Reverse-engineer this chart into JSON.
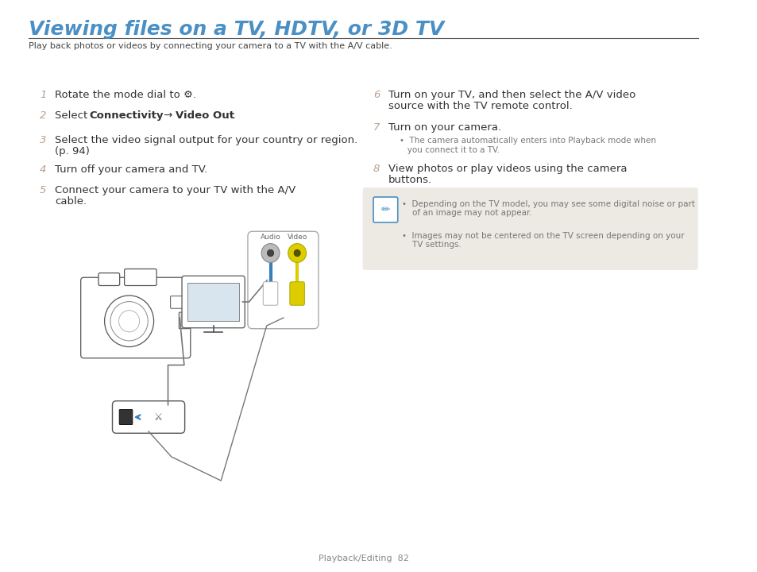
{
  "title": "Viewing files on a TV, HDTV, or 3D TV",
  "title_color": "#4A90C4",
  "subtitle": "Play back photos or videos by connecting your camera to a TV with the A/V cable.",
  "subtitle_color": "#444444",
  "background_color": "#ffffff",
  "number_color": "#B8A090",
  "step_color": "#333333",
  "steps_left": [
    {
      "num": "1",
      "lines": [
        "Rotate the mode dial to ⚙."
      ]
    },
    {
      "num": "2",
      "lines": [
        "Select Connectivity → Video Out."
      ],
      "bold_ranges": [
        [
          7,
          19
        ],
        [
          22,
          31
        ]
      ]
    },
    {
      "num": "3",
      "lines": [
        "Select the video signal output for your country or region.",
        "(p. 94)"
      ]
    },
    {
      "num": "4",
      "lines": [
        "Turn off your camera and TV."
      ]
    },
    {
      "num": "5",
      "lines": [
        "Connect your camera to your TV with the A/V",
        "cable."
      ]
    }
  ],
  "steps_right": [
    {
      "num": "6",
      "lines": [
        "Turn on your TV, and then select the A/V video",
        "source with the TV remote control."
      ]
    },
    {
      "num": "7",
      "lines": [
        "Turn on your camera."
      ],
      "sub_lines": [
        "The camera automatically enters into Playback mode when",
        "you connect it to a TV."
      ]
    },
    {
      "num": "8",
      "lines": [
        "View photos or play videos using the camera",
        "buttons."
      ]
    }
  ],
  "note_bullets": [
    [
      "Depending on the TV model, you may see some digital noise or part",
      "of an image may not appear."
    ],
    [
      "Images may not be centered on the TV screen depending on your",
      "TV settings."
    ]
  ],
  "note_bg": "#EDE9E3",
  "note_text_color": "#777777",
  "note_icon_color": "#4A90C4",
  "footer": "Playback/Editing  82",
  "footer_color": "#888888"
}
